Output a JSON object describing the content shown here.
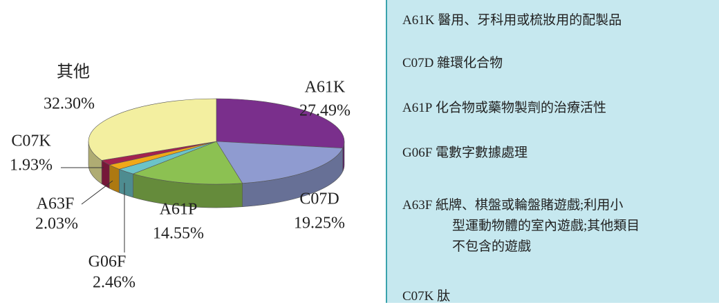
{
  "chart_data": {
    "type": "pie3d",
    "categories": [
      "A61K",
      "C07D",
      "A61P",
      "G06F",
      "A63F",
      "C07K",
      "其他"
    ],
    "values": [
      27.49,
      19.25,
      14.55,
      2.46,
      2.03,
      1.93,
      32.3
    ],
    "value_labels": [
      "27.49%",
      "19.25%",
      "14.55%",
      "2.46%",
      "2.03%",
      "1.93%",
      "32.30%"
    ],
    "colors": [
      "#7a2f8c",
      "#8f9bd0",
      "#8cc152",
      "#6cc3c8",
      "#f0a818",
      "#a3224f",
      "#f3efa0"
    ]
  },
  "legend": [
    {
      "code": "A61K",
      "lines": [
        "醫用、牙科用或梳妝用的配製品"
      ]
    },
    {
      "code": "C07D",
      "lines": [
        "雜環化合物"
      ]
    },
    {
      "code": "A61P",
      "lines": [
        "化合物或藥物製劑的治療活性"
      ]
    },
    {
      "code": "G06F",
      "lines": [
        "電數字數據處理"
      ]
    },
    {
      "code": "A63F",
      "lines": [
        "紙牌、棋盤或輪盤賭遊戲;利用小",
        "型運動物體的室內遊戲;其他類目",
        "不包含的遊戲"
      ]
    },
    {
      "code": "C07K",
      "lines": [
        "肽"
      ]
    }
  ]
}
